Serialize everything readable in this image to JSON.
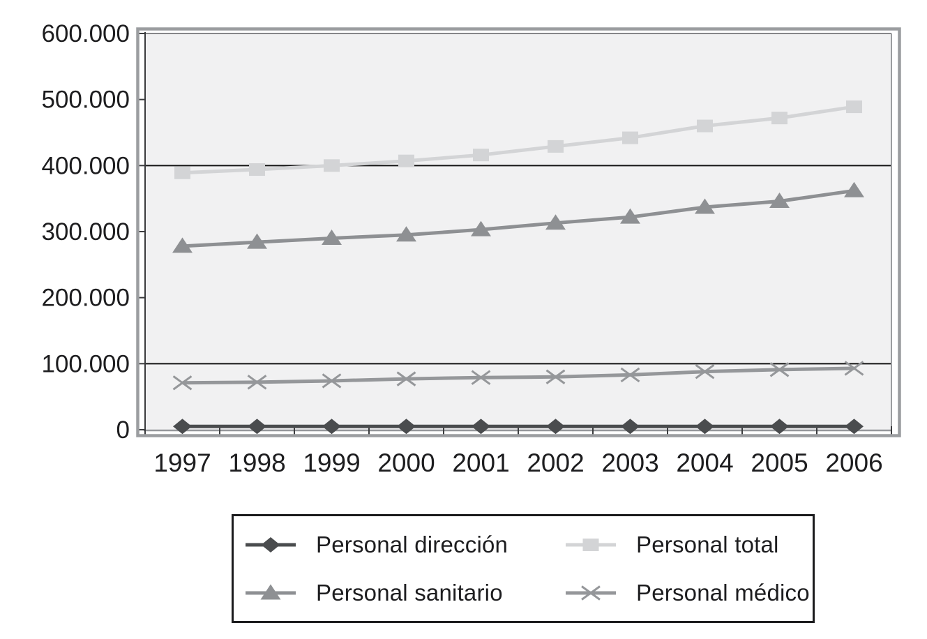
{
  "chart_data": {
    "type": "line",
    "title": "",
    "categories": [
      "1997",
      "1998",
      "1999",
      "2000",
      "2001",
      "2002",
      "2003",
      "2004",
      "2005",
      "2006"
    ],
    "y_axis": {
      "min": 0,
      "max": 600000,
      "tick_interval": 100000,
      "tick_labels": [
        "600.000",
        "500.000",
        "400.000",
        "300.000",
        "200.000",
        "100.000",
        "0"
      ],
      "gridlines_at": [
        400000,
        100000
      ]
    },
    "series": [
      {
        "name": "Personal dirección",
        "marker": "diamond",
        "color": "#4a4c4e",
        "values": [
          5000,
          5000,
          5000,
          5000,
          5000,
          5000,
          5000,
          5000,
          5000,
          5000
        ]
      },
      {
        "name": "Personal total",
        "marker": "square",
        "color": "#d3d4d6",
        "values": [
          389000,
          394000,
          400000,
          407000,
          416000,
          429000,
          442000,
          460000,
          472000,
          489000
        ]
      },
      {
        "name": "Personal sanitario",
        "marker": "triangle",
        "color": "#8e9093",
        "values": [
          278000,
          284000,
          290000,
          295000,
          303000,
          313000,
          322000,
          337000,
          346000,
          362000
        ]
      },
      {
        "name": "Personal médico",
        "marker": "x",
        "color": "#95979a",
        "values": [
          71000,
          72000,
          74000,
          77000,
          79000,
          80000,
          83000,
          88000,
          91000,
          93000
        ]
      }
    ],
    "legend_position": "bottom",
    "grid": "horizontal-partial"
  },
  "colors": {
    "background": "#ffffff",
    "plot_bg": "#f1f1f2",
    "frame": "#9b9da0",
    "axis": "#3b3c3e",
    "gridline": "#141414",
    "text": "#1d1d1f"
  }
}
